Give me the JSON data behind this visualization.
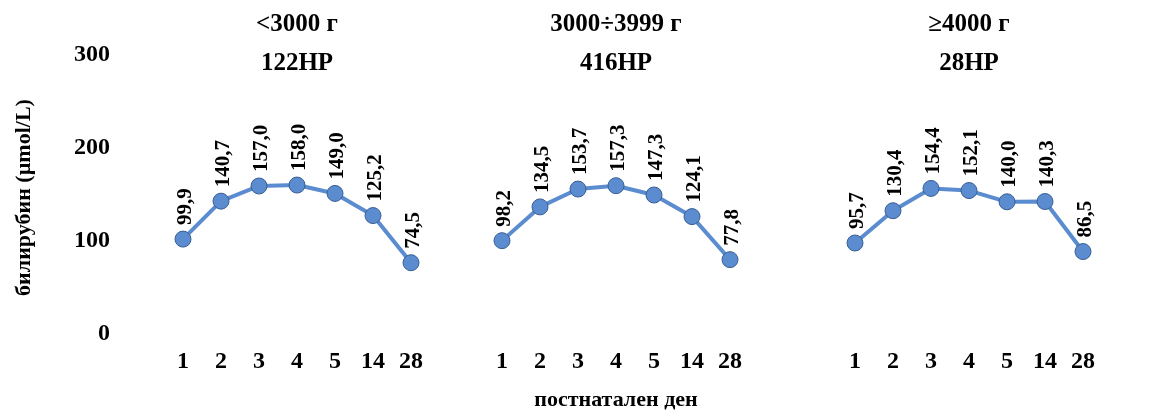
{
  "chart_data": [
    {
      "type": "line",
      "title": "<3000 г",
      "subtitle": "122НР",
      "ylabel": "билирубин  (µmol/L)",
      "categories": [
        "1",
        "2",
        "3",
        "4",
        "5",
        "14",
        "28"
      ],
      "ylim": [
        0,
        300
      ],
      "yticks": [
        0,
        100,
        200,
        300
      ],
      "grid": false,
      "marker": "circle",
      "line_style": "solid",
      "series": [
        {
          "color": "#5b8cd0",
          "values": [
            99.9,
            140.7,
            157.0,
            158.0,
            149.0,
            125.2,
            74.5
          ],
          "value_labels": [
            "99,9",
            "140,7",
            "157,0",
            "158,0",
            "149,0",
            "125,2",
            "74,5"
          ]
        }
      ]
    },
    {
      "type": "line",
      "title": "3000÷3999 г",
      "subtitle": "416НР",
      "xlabel": "постнатален ден",
      "categories": [
        "1",
        "2",
        "3",
        "4",
        "5",
        "14",
        "28"
      ],
      "ylim": [
        0,
        300
      ],
      "tick_labels": "x",
      "grid": false,
      "marker": "circle",
      "line_style": "solid",
      "series": [
        {
          "color": "#5b8cd0",
          "values": [
            98.2,
            134.5,
            153.7,
            157.3,
            147.3,
            124.1,
            77.8
          ],
          "value_labels": [
            "98,2",
            "134,5",
            "153,7",
            "157,3",
            "147,3",
            "124,1",
            "77,8"
          ]
        }
      ]
    },
    {
      "type": "line",
      "title": "≥4000 г",
      "subtitle": "28НР",
      "categories": [
        "1",
        "2",
        "3",
        "4",
        "5",
        "14",
        "28"
      ],
      "ylim": [
        0,
        300
      ],
      "tick_labels": "x",
      "grid": false,
      "marker": "circle",
      "line_style": "solid",
      "series": [
        {
          "color": "#5b8cd0",
          "values": [
            95.7,
            130.4,
            154.4,
            152.1,
            140.0,
            140.3,
            86.5
          ],
          "value_labels": [
            "95,7",
            "130,4",
            "154,4",
            "152,1",
            "140,0",
            "140,3",
            "86,5"
          ]
        }
      ]
    }
  ]
}
